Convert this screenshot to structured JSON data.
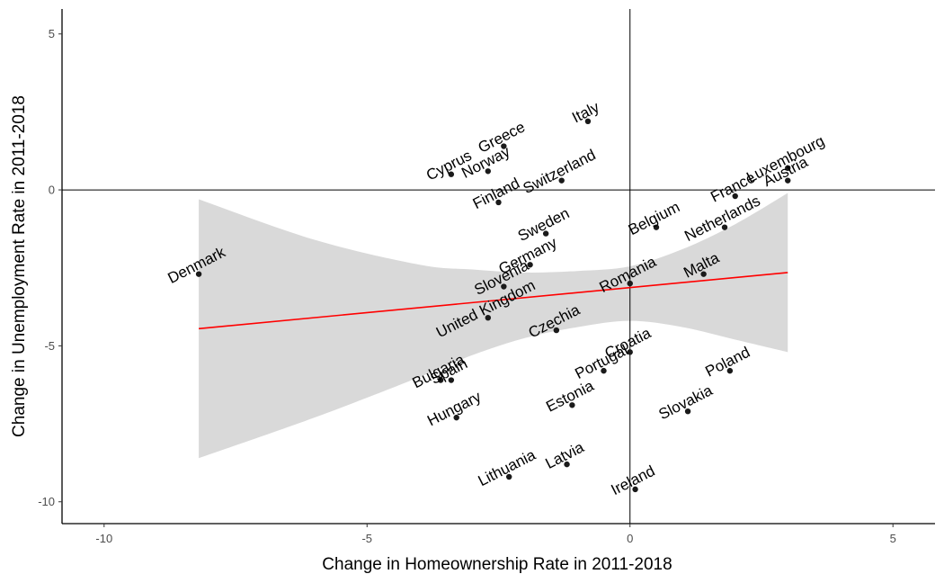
{
  "chart_data": {
    "type": "scatter",
    "title": "",
    "xlabel": "Change in Homeownership Rate in 2011-2018",
    "ylabel": "Change in Unemployment Rate in 2011-2018",
    "xlim": [
      -10.8,
      5.8
    ],
    "ylim": [
      -10.7,
      5.8
    ],
    "x_ticks": [
      -10,
      -5,
      0,
      5
    ],
    "y_ticks": [
      -10,
      -5,
      0,
      5
    ],
    "grid": false,
    "reference_lines": {
      "x": 0,
      "y": 0
    },
    "points": [
      {
        "label": "Denmark",
        "x": -8.2,
        "y": -2.7
      },
      {
        "label": "Italy",
        "x": -0.8,
        "y": 2.2
      },
      {
        "label": "Greece",
        "x": -2.4,
        "y": 1.4
      },
      {
        "label": "Cyprus",
        "x": -3.4,
        "y": 0.5
      },
      {
        "label": "Norway",
        "x": -2.7,
        "y": 0.6
      },
      {
        "label": "Finland",
        "x": -2.5,
        "y": -0.4
      },
      {
        "label": "Switzerland",
        "x": -1.3,
        "y": 0.3
      },
      {
        "label": "Sweden",
        "x": -1.6,
        "y": -1.4
      },
      {
        "label": "Germany",
        "x": -1.9,
        "y": -2.4
      },
      {
        "label": "Slovenia",
        "x": -2.4,
        "y": -3.1
      },
      {
        "label": "United Kingdom",
        "x": -2.7,
        "y": -4.1
      },
      {
        "label": "Romania",
        "x": 0.0,
        "y": -3.0
      },
      {
        "label": "Czechia",
        "x": -1.4,
        "y": -4.5
      },
      {
        "label": "Belgium",
        "x": 0.5,
        "y": -1.2
      },
      {
        "label": "Netherlands",
        "x": 1.8,
        "y": -1.2
      },
      {
        "label": "France",
        "x": 2.0,
        "y": -0.2
      },
      {
        "label": "Luxembourg",
        "x": 3.0,
        "y": 0.7
      },
      {
        "label": "Austria",
        "x": 3.0,
        "y": 0.3
      },
      {
        "label": "Malta",
        "x": 1.4,
        "y": -2.7
      },
      {
        "label": "Croatia",
        "x": 0.0,
        "y": -5.2
      },
      {
        "label": "Portugal",
        "x": -0.5,
        "y": -5.8
      },
      {
        "label": "Estonia",
        "x": -1.1,
        "y": -6.9
      },
      {
        "label": "Bulgaria",
        "x": -3.6,
        "y": -6.1
      },
      {
        "label": "Spain",
        "x": -3.4,
        "y": -6.1
      },
      {
        "label": "Hungary",
        "x": -3.3,
        "y": -7.3
      },
      {
        "label": "Poland",
        "x": 1.9,
        "y": -5.8
      },
      {
        "label": "Slovakia",
        "x": 1.1,
        "y": -7.1
      },
      {
        "label": "Lithuania",
        "x": -2.3,
        "y": -9.2
      },
      {
        "label": "Latvia",
        "x": -1.2,
        "y": -8.8
      },
      {
        "label": "Ireland",
        "x": 0.1,
        "y": -9.6
      }
    ],
    "fit_line": {
      "x": [
        -8.2,
        3.0
      ],
      "y": [
        -4.45,
        -2.65
      ],
      "color": "#ff0000"
    },
    "confidence_band": {
      "x": [
        -8.2,
        -6,
        -4,
        -3,
        -2,
        -1,
        0,
        1,
        2,
        3
      ],
      "upper": [
        -0.3,
        -1.6,
        -2.4,
        -2.55,
        -2.65,
        -2.6,
        -2.45,
        -1.9,
        -1.1,
        -0.1
      ],
      "lower": [
        -8.6,
        -7.3,
        -6.0,
        -5.3,
        -4.75,
        -4.4,
        -4.2,
        -4.4,
        -4.8,
        -5.2
      ],
      "color": "#d9d9d9"
    },
    "point_color": "#1a1a1a"
  }
}
